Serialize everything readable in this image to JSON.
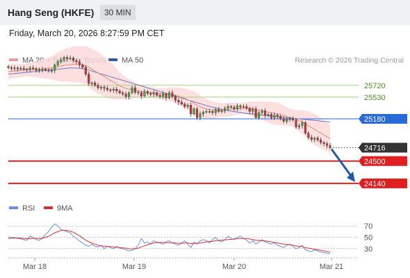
{
  "header": {
    "title": "Hang Seng (HKFE)",
    "interval": "30 MIN"
  },
  "datetime": "Friday, March 20, 2026 8:27:59 PM CET",
  "legend": {
    "ma20_label": "MA 20 + Bollinger Bands",
    "ma50_label": "MA 50",
    "credit": "Research © 2026 Trading Central"
  },
  "colors": {
    "up": "#44aa44",
    "down": "#cc3333",
    "ma20": "#e58a75",
    "ma50": "#6b78c8",
    "band": "#fbdada",
    "resistance": "#a5cf82",
    "pivot": "#2a6ad8",
    "support": "#e02020",
    "last": "#333333",
    "arrow": "#1f5aa8",
    "rsi": "#6a8fe6",
    "rsi_ma": "#d93030"
  },
  "chart_data": [
    {
      "type": "candlestick",
      "x_labels": [
        "Mar 18",
        "Mar 19",
        "Mar 20",
        "Mar 21"
      ],
      "y_range": [
        23960,
        26020
      ],
      "levels": [
        {
          "value": 25720,
          "label": "25720",
          "kind": "resistance"
        },
        {
          "value": 25530,
          "label": "25530",
          "kind": "resistance"
        },
        {
          "value": 25180,
          "label": "25180",
          "kind": "pivot"
        },
        {
          "value": 24716,
          "label": "24716",
          "kind": "last"
        },
        {
          "value": 24500,
          "label": "24500",
          "kind": "support"
        },
        {
          "value": 24140,
          "label": "24140",
          "kind": "support"
        }
      ],
      "closes": [
        26005,
        25990,
        26000,
        25985,
        25995,
        25980,
        25975,
        26000,
        25990,
        25960,
        25975,
        25980,
        25965,
        25955,
        25960,
        26050,
        26100,
        26130,
        26170,
        26150,
        26160,
        26120,
        26100,
        26050,
        26010,
        25900,
        25750,
        25760,
        25720,
        25680,
        25690,
        25670,
        25650,
        25640,
        25660,
        25630,
        25600,
        25580,
        25540,
        25600,
        25680,
        25610,
        25600,
        25550,
        25620,
        25590,
        25580,
        25600,
        25560,
        25540,
        25580,
        25520,
        25600,
        25540,
        25480,
        25450,
        25420,
        25380,
        25400,
        25260,
        25340,
        25200,
        25260,
        25290,
        25300,
        25300,
        25280,
        25330,
        25300,
        25310,
        25350,
        25380,
        25370,
        25340,
        25390,
        25370,
        25380,
        25350,
        25300,
        25340,
        25200,
        25280,
        25310,
        25240,
        25250,
        25200,
        25240,
        25220,
        25180,
        25140,
        25180,
        25180,
        25160,
        25050,
        25070,
        25120,
        24950,
        24880,
        24850,
        24870,
        24840,
        24800,
        24780,
        24750,
        24716
      ],
      "ma20": [
        25940,
        25945,
        25950,
        25955,
        25960,
        25965,
        25970,
        25972,
        25975,
        25978,
        25980,
        25985,
        25990,
        25995,
        26000,
        26010,
        26020,
        26030,
        26040,
        26050,
        26055,
        26058,
        26058,
        26055,
        26050,
        26040,
        26010,
        25980,
        25950,
        25920,
        25890,
        25860,
        25830,
        25800,
        25770,
        25740,
        25710,
        25690,
        25670,
        25660,
        25650,
        25640,
        25630,
        25620,
        25615,
        25610,
        25605,
        25600,
        25595,
        25590,
        25585,
        25580,
        25575,
        25570,
        25560,
        25545,
        25530,
        25510,
        25490,
        25460,
        25430,
        25400,
        25375,
        25355,
        25340,
        25330,
        25325,
        25320,
        25320,
        25322,
        25325,
        25330,
        25335,
        25338,
        25340,
        25345,
        25350,
        25350,
        25345,
        25338,
        25330,
        25320,
        25310,
        25300,
        25290,
        25280,
        25270,
        25260,
        25250,
        25235,
        25220,
        25205,
        25190,
        25170,
        25150,
        25130,
        25100,
        25070,
        25040,
        25010,
        24980,
        24950,
        24920,
        24890,
        24860
      ],
      "ma50": [
        25900,
        25905,
        25910,
        25915,
        25920,
        25925,
        25930,
        25935,
        25940,
        25945,
        25950,
        25955,
        25960,
        25965,
        25970,
        25975,
        25980,
        25985,
        25990,
        25995,
        26000,
        26000,
        25998,
        25995,
        25990,
        25980,
        25965,
        25950,
        25935,
        25920,
        25905,
        25890,
        25875,
        25860,
        25845,
        25830,
        25815,
        25800,
        25785,
        25770,
        25755,
        25740,
        25725,
        25710,
        25695,
        25680,
        25665,
        25650,
        25635,
        25620,
        25605,
        25590,
        25575,
        25560,
        25545,
        25530,
        25515,
        25500,
        25485,
        25470,
        25455,
        25440,
        25425,
        25410,
        25395,
        25380,
        25368,
        25356,
        25345,
        25335,
        25325,
        25315,
        25305,
        25298,
        25290,
        25282,
        25275,
        25268,
        25262,
        25256,
        25250,
        25245,
        25240,
        25235,
        25230,
        25225,
        25220,
        25215,
        25210,
        25205,
        25200,
        25195,
        25190,
        25185,
        25180,
        25175,
        25170,
        25165,
        25160,
        25155,
        25150,
        25145,
        25140,
        25135,
        25130
      ],
      "bb_width": [
        120,
        120,
        115,
        110,
        110,
        105,
        100,
        110,
        120,
        130,
        140,
        150,
        160,
        170,
        190,
        210,
        230,
        250,
        260,
        270,
        280,
        290,
        290,
        290,
        300,
        310,
        320,
        330,
        335,
        340,
        330,
        320,
        310,
        300,
        280,
        250,
        220,
        200,
        180,
        160,
        140,
        120,
        110,
        100,
        95,
        90,
        90,
        88,
        85,
        85,
        90,
        100,
        110,
        120,
        130,
        140,
        150,
        160,
        170,
        180,
        190,
        190,
        180,
        170,
        160,
        150,
        140,
        130,
        120,
        110,
        110,
        110,
        110,
        100,
        90,
        90,
        95,
        100,
        110,
        120,
        130,
        140,
        150,
        160,
        170,
        180,
        180,
        180,
        170,
        160,
        150,
        140,
        140,
        150,
        170,
        190,
        210,
        230,
        240,
        250,
        250,
        245,
        240,
        235,
        230
      ]
    },
    {
      "type": "line",
      "title": "RSI",
      "series_names": [
        "RSI",
        "9MA"
      ],
      "y_ticks": [
        70,
        50,
        30
      ],
      "y_range": [
        15,
        85
      ],
      "rsi": [
        51,
        49,
        50,
        48,
        47,
        46,
        45,
        52,
        50,
        46,
        45,
        48,
        55,
        60,
        68,
        74,
        70,
        64,
        62,
        60,
        58,
        52,
        48,
        44,
        40,
        36,
        34,
        38,
        34,
        33,
        36,
        30,
        34,
        32,
        30,
        34,
        31,
        30,
        28,
        26,
        27,
        30,
        36,
        48,
        40,
        42,
        38,
        44,
        42,
        40,
        38,
        42,
        44,
        40,
        38,
        36,
        40,
        44,
        38,
        32,
        42,
        38,
        44,
        46,
        44,
        40,
        46,
        50,
        44,
        42,
        46,
        52,
        48,
        46,
        50,
        52,
        48,
        45,
        40,
        44,
        38,
        42,
        46,
        42,
        40,
        38,
        40,
        36,
        34,
        32,
        36,
        38,
        34,
        30,
        32,
        36,
        28,
        26,
        25,
        28,
        26,
        24,
        23,
        22,
        21
      ],
      "rsi_ma": [
        48,
        48.5,
        49,
        48.8,
        48.5,
        48,
        47.5,
        47.5,
        47.8,
        48,
        48,
        48.5,
        50,
        52,
        55,
        58,
        60,
        62,
        62.5,
        62,
        61,
        59,
        56,
        53,
        49,
        45,
        42,
        40,
        38,
        36,
        35,
        34.5,
        34,
        33.5,
        33,
        32.5,
        32,
        31.5,
        31,
        30,
        29.5,
        30,
        31,
        33,
        35,
        37,
        39,
        40,
        40.5,
        41,
        41,
        40.5,
        40.5,
        40.5,
        40,
        39.5,
        39.5,
        40,
        40,
        39,
        39,
        39.5,
        40,
        41,
        42,
        42.5,
        43,
        44,
        44.5,
        45,
        45.5,
        46,
        46.5,
        47,
        47.5,
        48,
        48,
        47.5,
        47,
        46,
        45,
        44.5,
        44,
        43.5,
        43,
        42,
        41,
        40,
        39,
        38,
        37.5,
        37,
        36,
        35,
        34,
        33.5,
        32,
        31,
        30,
        29,
        28,
        27,
        26,
        25,
        24
      ]
    }
  ]
}
